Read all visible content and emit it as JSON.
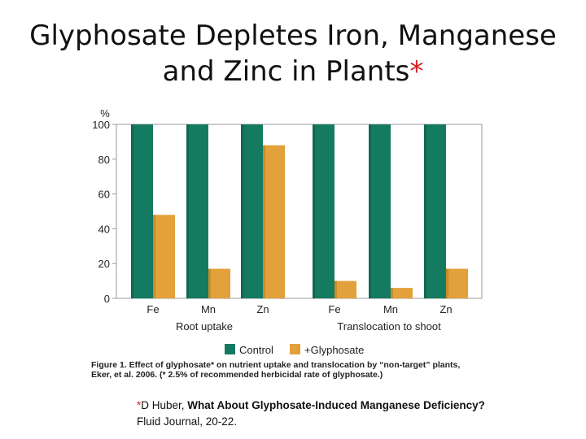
{
  "slide": {
    "title_line1": "Glyphosate Depletes Iron, Manganese",
    "title_line2": "and Zinc in Plants",
    "title_asterisk": "*"
  },
  "chart_data": {
    "type": "bar",
    "y_unit_label": "%",
    "ylim": [
      0,
      100
    ],
    "yticks": [
      0,
      20,
      40,
      60,
      80,
      100
    ],
    "grid": false,
    "groups": [
      {
        "label": "Root uptake",
        "categories": [
          "Fe",
          "Mn",
          "Zn"
        ]
      },
      {
        "label": "Translocation to shoot",
        "categories": [
          "Fe",
          "Mn",
          "Zn"
        ]
      }
    ],
    "categories": [
      "Fe",
      "Mn",
      "Zn",
      "Fe",
      "Mn",
      "Zn"
    ],
    "series": [
      {
        "name": "Control",
        "color": "#147a60",
        "values": [
          100,
          100,
          100,
          100,
          100,
          100
        ]
      },
      {
        "name": "+Glyphosate",
        "color": "#e2a13a",
        "values": [
          48,
          17,
          88,
          10,
          6,
          17
        ]
      }
    ],
    "legend_position": "bottom"
  },
  "caption": {
    "line1": "Figure 1. Effect of glyphosate* on nutrient uptake and translocation by “non-target” plants,",
    "line2": "Eker, et al. 2006. (* 2.5% of recommended herbicidal rate of glyphosate.)"
  },
  "reference": {
    "asterisk": "*",
    "author": "D Huber, ",
    "article_title": "What About Glyphosate-Induced Manganese Deficiency?",
    "source": "Fluid Journal, 20-22."
  }
}
